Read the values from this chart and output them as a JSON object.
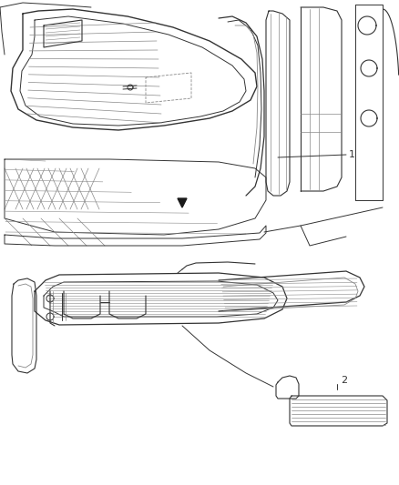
{
  "background_color": "#ffffff",
  "line_color": "#333333",
  "line_color_light": "#888888",
  "label_1_text": "1",
  "label_2_text": "2",
  "figsize": [
    4.38,
    5.33
  ],
  "dpi": 100
}
